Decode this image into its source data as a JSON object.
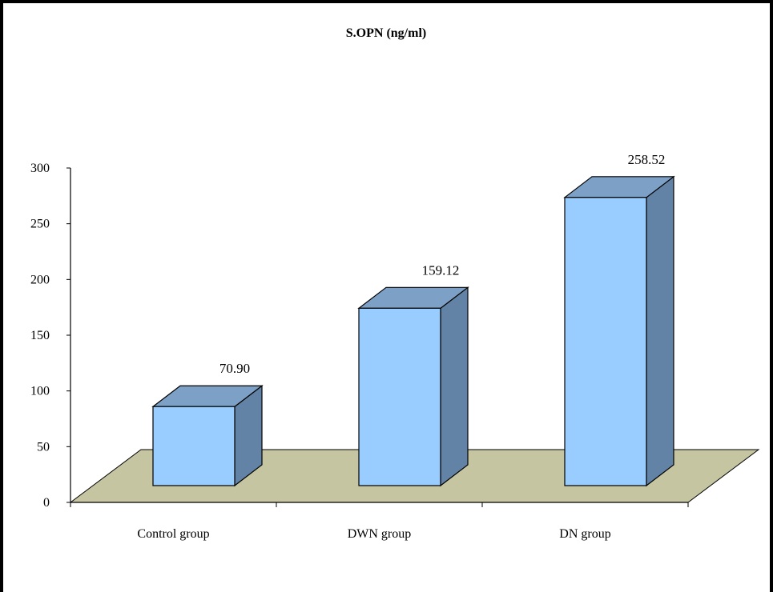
{
  "chart_data": {
    "type": "bar",
    "title": "S.OPN (ng/ml)",
    "categories": [
      "Control group",
      "DWN group",
      "DN group"
    ],
    "values": [
      70.9,
      159.12,
      258.52
    ],
    "data_labels": [
      "70.90",
      "159.12",
      "258.52"
    ],
    "yticks": [
      "0",
      "50",
      "100",
      "150",
      "200",
      "250",
      "300"
    ],
    "ylim": [
      0,
      300
    ],
    "xlabel": "",
    "ylabel": "",
    "grid": false,
    "legend": "none",
    "style": "3d-column"
  },
  "colors": {
    "bar_front": "#99ccff",
    "bar_top": "#7da1c6",
    "bar_side": "#6283a6",
    "floor": "#c5c5a2",
    "axis": "#000000"
  }
}
